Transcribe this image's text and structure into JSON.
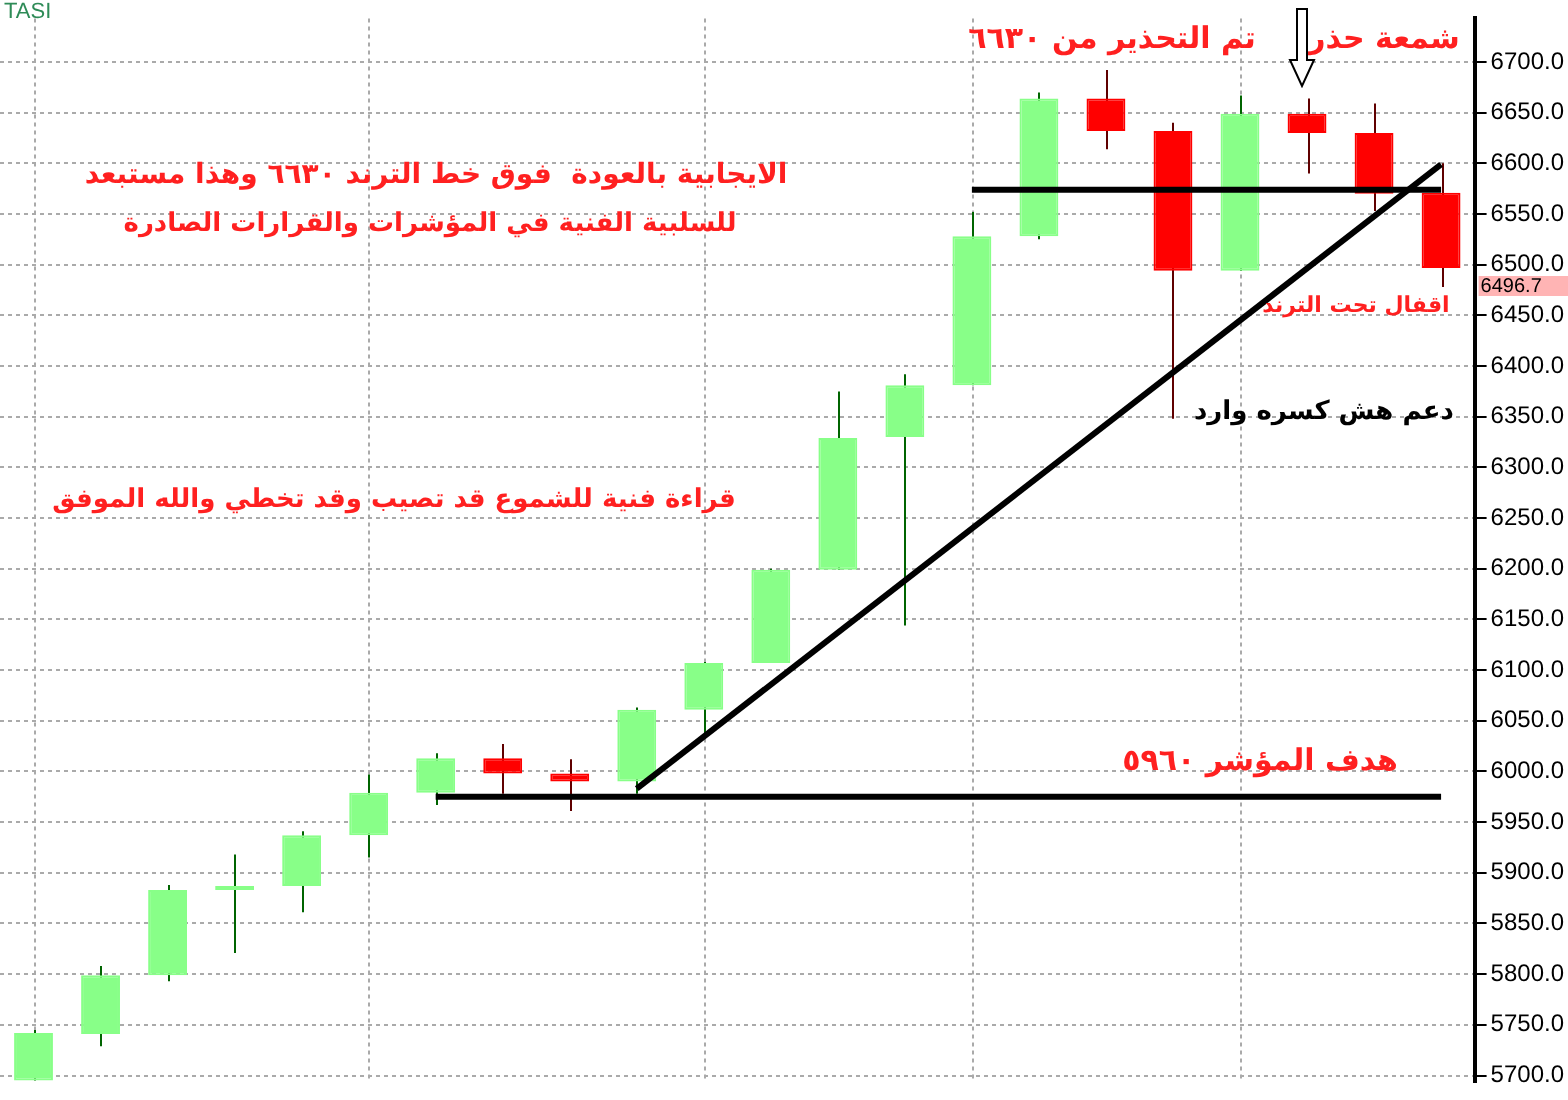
{
  "chart_data": {
    "type": "candlestick",
    "title": "TASI",
    "categories": [
      null,
      null,
      null,
      null,
      null,
      null,
      null,
      null,
      null,
      null,
      null,
      null,
      null,
      null,
      null,
      null,
      null,
      null,
      null,
      null,
      null,
      null
    ],
    "ohlc": [
      [
        5695,
        5745,
        5695,
        5742
      ],
      [
        5741,
        5808,
        5729,
        5799
      ],
      [
        5799,
        5888,
        5793,
        5883
      ],
      [
        5883,
        5918,
        5821,
        5886
      ],
      [
        5887,
        5941,
        5861,
        5937
      ],
      [
        5937,
        5997,
        5915,
        5979
      ],
      [
        5979,
        6018,
        5967,
        6013
      ],
      [
        6013,
        6027,
        5978,
        5998
      ],
      [
        5998,
        6012,
        5961,
        5990
      ],
      [
        5990,
        6063,
        5978,
        6061
      ],
      [
        6061,
        6108,
        6035,
        6107
      ],
      [
        6107,
        6200,
        6107,
        6199
      ],
      [
        6199,
        6375,
        6199,
        6329
      ],
      [
        6330,
        6392,
        6144,
        6381
      ],
      [
        6381,
        6552,
        6381,
        6528
      ],
      [
        6528,
        6670,
        6525,
        6664
      ],
      [
        6664,
        6692,
        6614,
        6632
      ],
      [
        6632,
        6640,
        6348,
        6494
      ],
      [
        6494,
        6667,
        6494,
        6649
      ],
      [
        6649,
        6664,
        6590,
        6630
      ],
      [
        6630,
        6659,
        6553,
        6570
      ],
      [
        6571,
        6600,
        6478,
        6496.7
      ]
    ],
    "colors": [
      "#88ff88",
      "#88ff88",
      "#88ff88",
      "#88ff88",
      "#88ff88",
      "#88ff88",
      "#88ff88",
      "#ff0000",
      "#ff0000",
      "#88ff88",
      "#88ff88",
      "#88ff88",
      "#88ff88",
      "#88ff88",
      "#88ff88",
      "#88ff88",
      "#ff0000",
      "#ff0000",
      "#88ff88",
      "#ff0000",
      "#ff0000",
      "#ff0000"
    ],
    "series": [
      {
        "type": "line",
        "color": "#000000",
        "values": [
          null,
          null,
          null,
          null,
          null,
          null,
          5975,
          5975,
          5975,
          5975,
          5975,
          5975,
          5975,
          5975,
          5975,
          5975,
          5975,
          5975,
          5975,
          5975,
          5975,
          5975
        ]
      },
      {
        "type": "line",
        "color": "#000000",
        "values": [
          null,
          null,
          null,
          null,
          null,
          null,
          null,
          null,
          null,
          null,
          null,
          null,
          null,
          null,
          6574,
          6574,
          6574,
          6574,
          6574,
          6574,
          6574,
          6574
        ]
      },
      {
        "type": "line",
        "color": "#000000",
        "values": [
          null,
          null,
          null,
          null,
          null,
          null,
          null,
          null,
          null,
          5983,
          null,
          null,
          null,
          null,
          null,
          null,
          null,
          null,
          null,
          null,
          null,
          6599
        ]
      }
    ],
    "ylim": [
      5694,
      6743
    ],
    "yticks": [
      {
        "value": 5700,
        "label": "5700.0"
      },
      {
        "value": 5750,
        "label": "5750.0"
      },
      {
        "value": 5800,
        "label": "5800.0"
      },
      {
        "value": 5850,
        "label": "5850.0"
      },
      {
        "value": 5900,
        "label": "5900.0"
      },
      {
        "value": 5950,
        "label": "5950.0"
      },
      {
        "value": 6000,
        "label": "6000.0"
      },
      {
        "value": 6050,
        "label": "6050.0"
      },
      {
        "value": 6100,
        "label": "6100.0"
      },
      {
        "value": 6150,
        "label": "6150.0"
      },
      {
        "value": 6200,
        "label": "6200.0"
      },
      {
        "value": 6250,
        "label": "6250.0"
      },
      {
        "value": 6300,
        "label": "6300.0"
      },
      {
        "value": 6350,
        "label": "6350.0"
      },
      {
        "value": 6400,
        "label": "6400.0"
      },
      {
        "value": 6450,
        "label": "6450.0"
      },
      {
        "value": 6500,
        "label": "6500.0"
      },
      {
        "value": 6550,
        "label": "6550.0"
      },
      {
        "value": 6600,
        "label": "6600.0"
      },
      {
        "value": 6650,
        "label": "6650.0"
      },
      {
        "value": 6700,
        "label": "6700.0"
      }
    ],
    "grid": true,
    "annotations": [
      "الايجابية بالعودة  فوق خط الترند ٦٦٣٠ وهذا مستبعد",
      "للسلبية الفنية في المؤشرات والقرارات الصادرة",
      "قراءة فنية للشموع قد تصيب وقد تخطي والله الموفق",
      "تم التحذير من ٦٦٣٠",
      "شمعة حذر",
      "اقفال تحت الترند",
      "دعم هش كسره وارد",
      "هدف المؤشر ٥٩٦٠",
      "6496.7"
    ]
  }
}
